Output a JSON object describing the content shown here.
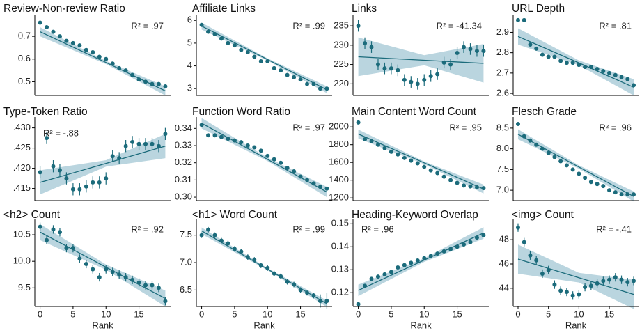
{
  "chart_data": [
    {
      "type": "scatter",
      "title": "Review-Non-review Ratio",
      "annotation": "R² = .97",
      "annotation_position": "right",
      "color": "#1b6b7b",
      "x": [
        0,
        1,
        2,
        3,
        4,
        5,
        6,
        7,
        8,
        9,
        10,
        11,
        12,
        13,
        14,
        15,
        16,
        17,
        18,
        19
      ],
      "values": [
        0.76,
        0.74,
        0.72,
        0.7,
        0.68,
        0.67,
        0.66,
        0.64,
        0.63,
        0.61,
        0.6,
        0.58,
        0.56,
        0.55,
        0.53,
        0.51,
        0.5,
        0.49,
        0.49,
        0.48
      ],
      "errors": [
        0.005,
        0.005,
        0.005,
        0.005,
        0.005,
        0.005,
        0.005,
        0.005,
        0.005,
        0.005,
        0.005,
        0.005,
        0.005,
        0.005,
        0.005,
        0.005,
        0.005,
        0.005,
        0.005,
        0.005
      ],
      "band_x": [
        0,
        10,
        19
      ],
      "fit": [
        0.72,
        0.585,
        0.46
      ],
      "ci_lower": [
        0.7,
        0.578,
        0.44
      ],
      "ci_upper": [
        0.74,
        0.592,
        0.48
      ],
      "xlim": [
        -0.8,
        19.8
      ],
      "ylim": [
        0.44,
        0.78
      ],
      "yticks": [
        0.5,
        0.6,
        0.7
      ]
    },
    {
      "type": "scatter",
      "title": "Affiliate Links",
      "annotation": "R² = .99",
      "annotation_position": "right",
      "color": "#1b6b7b",
      "x": [
        0,
        1,
        2,
        3,
        4,
        5,
        6,
        7,
        8,
        9,
        10,
        11,
        12,
        13,
        14,
        15,
        16,
        17,
        18,
        19
      ],
      "values": [
        5.8,
        5.5,
        5.4,
        5.2,
        5.0,
        4.9,
        4.7,
        4.6,
        4.4,
        4.2,
        4.2,
        3.9,
        3.8,
        3.6,
        3.5,
        3.4,
        3.2,
        3.2,
        3.0,
        3.0
      ],
      "errors": [
        0.05,
        0.05,
        0.05,
        0.05,
        0.05,
        0.05,
        0.05,
        0.05,
        0.05,
        0.05,
        0.05,
        0.05,
        0.05,
        0.05,
        0.05,
        0.05,
        0.05,
        0.05,
        0.05,
        0.05
      ],
      "band_x": [
        0,
        10,
        19
      ],
      "fit": [
        5.75,
        4.28,
        2.95
      ],
      "ci_lower": [
        5.6,
        4.23,
        2.8
      ],
      "ci_upper": [
        5.9,
        4.33,
        3.1
      ],
      "xlim": [
        -0.8,
        19.8
      ],
      "ylim": [
        2.7,
        6.1
      ],
      "yticks": [
        3,
        4,
        5,
        6
      ]
    },
    {
      "type": "scatter",
      "title": "Links",
      "annotation": "R² = -41.34",
      "annotation_position": "right",
      "color": "#1b6b7b",
      "x": [
        0,
        1,
        2,
        3,
        4,
        5,
        6,
        7,
        8,
        9,
        10,
        11,
        12,
        13,
        14,
        15,
        16,
        17,
        18,
        19
      ],
      "values": [
        235,
        230.5,
        229.5,
        225,
        224,
        224,
        223.5,
        221,
        220.5,
        220,
        221,
        222,
        222.5,
        225.5,
        225,
        228,
        229.5,
        229,
        228.5,
        228.5
      ],
      "errors": [
        1.5,
        1.5,
        1.5,
        1.5,
        1.5,
        1.5,
        1.5,
        1.5,
        1.5,
        1.5,
        1.5,
        1.5,
        1.5,
        1.5,
        1.5,
        1.5,
        1.5,
        1.5,
        1.5,
        1.5
      ],
      "band_x": [
        0,
        10,
        19
      ],
      "fit": [
        227,
        226.1,
        225.3
      ],
      "ci_lower": [
        222,
        224.8,
        220.3
      ],
      "ci_upper": [
        232,
        227.4,
        230.3
      ],
      "xlim": [
        -0.8,
        19.8
      ],
      "ylim": [
        217,
        237
      ],
      "yticks": [
        220,
        225,
        230,
        235
      ]
    },
    {
      "type": "scatter",
      "title": "URL Depth",
      "annotation": "R² = .81",
      "annotation_position": "right",
      "color": "#1b6b7b",
      "x": [
        0,
        1,
        2,
        3,
        4,
        5,
        6,
        7,
        8,
        9,
        10,
        11,
        12,
        13,
        14,
        15,
        16,
        17,
        18,
        19
      ],
      "values": [
        2.96,
        2.96,
        2.84,
        2.82,
        2.79,
        2.78,
        2.78,
        2.76,
        2.75,
        2.75,
        2.74,
        2.73,
        2.73,
        2.72,
        2.71,
        2.7,
        2.69,
        2.68,
        2.67,
        2.64
      ],
      "errors": [
        0.005,
        0.005,
        0.005,
        0.005,
        0.005,
        0.005,
        0.005,
        0.005,
        0.005,
        0.005,
        0.005,
        0.005,
        0.005,
        0.005,
        0.005,
        0.005,
        0.005,
        0.005,
        0.005,
        0.005
      ],
      "band_x": [
        0,
        10,
        19
      ],
      "fit": [
        2.88,
        2.75,
        2.63
      ],
      "ci_lower": [
        2.84,
        2.738,
        2.59
      ],
      "ci_upper": [
        2.92,
        2.762,
        2.67
      ],
      "xlim": [
        -0.8,
        19.8
      ],
      "ylim": [
        2.59,
        2.97
      ],
      "yticks": [
        2.6,
        2.7,
        2.8,
        2.9
      ]
    },
    {
      "type": "scatter",
      "title": "Type-Token Ratio",
      "annotation": "R² = -.88",
      "annotation_position": "left",
      "color": "#1b6b7b",
      "x": [
        0,
        1,
        2,
        3,
        4,
        5,
        6,
        7,
        8,
        9,
        10,
        11,
        12,
        13,
        14,
        15,
        16,
        17,
        18,
        19
      ],
      "values": [
        0.419,
        0.4275,
        0.4205,
        0.4195,
        0.4175,
        0.4148,
        0.4148,
        0.4155,
        0.4165,
        0.4165,
        0.4175,
        0.423,
        0.4225,
        0.4255,
        0.4265,
        0.426,
        0.426,
        0.426,
        0.4255,
        0.4285
      ],
      "errors": [
        0.0015,
        0.0015,
        0.0015,
        0.0015,
        0.0015,
        0.0015,
        0.0015,
        0.0015,
        0.0015,
        0.0015,
        0.0015,
        0.0015,
        0.0015,
        0.0015,
        0.0015,
        0.0015,
        0.0015,
        0.0015,
        0.0015,
        0.0015
      ],
      "band_x": [
        0,
        10,
        19
      ],
      "fit": [
        0.4165,
        0.4212,
        0.4255
      ],
      "ci_lower": [
        0.4135,
        0.4204,
        0.4225
      ],
      "ci_upper": [
        0.4195,
        0.422,
        0.4285
      ],
      "xlim": [
        -0.8,
        19.8
      ],
      "ylim": [
        0.412,
        0.432
      ],
      "yticks": [
        {
          "value": 0.415,
          "label": ".415"
        },
        {
          "value": 0.42,
          "label": ".420"
        },
        {
          "value": 0.425,
          "label": ".425"
        },
        {
          "value": 0.43,
          "label": ".430"
        }
      ]
    },
    {
      "type": "scatter",
      "title": "Function Word Ratio",
      "annotation": "R² = .97",
      "annotation_position": "right",
      "color": "#1b6b7b",
      "x": [
        0,
        1,
        2,
        3,
        4,
        5,
        6,
        7,
        8,
        9,
        10,
        11,
        12,
        13,
        14,
        15,
        16,
        17,
        18,
        19
      ],
      "values": [
        0.342,
        0.336,
        0.336,
        0.335,
        0.334,
        0.333,
        0.332,
        0.33,
        0.329,
        0.327,
        0.324,
        0.322,
        0.32,
        0.317,
        0.315,
        0.312,
        0.31,
        0.308,
        0.306,
        0.305
      ],
      "errors": [
        0.001,
        0.001,
        0.001,
        0.001,
        0.001,
        0.001,
        0.001,
        0.001,
        0.001,
        0.001,
        0.001,
        0.001,
        0.001,
        0.001,
        0.001,
        0.001,
        0.001,
        0.001,
        0.001,
        0.001
      ],
      "band_x": [
        0,
        10,
        19
      ],
      "fit": [
        0.343,
        0.322,
        0.303
      ],
      "ci_lower": [
        0.34,
        0.321,
        0.3
      ],
      "ci_upper": [
        0.346,
        0.323,
        0.306
      ],
      "xlim": [
        -0.8,
        19.8
      ],
      "ylim": [
        0.298,
        0.345
      ],
      "yticks": [
        {
          "value": 0.3,
          "label": "0.30"
        },
        0.31,
        0.32,
        0.33,
        0.34
      ]
    },
    {
      "type": "scatter",
      "title": "Main Content Word Count",
      "annotation": "R² = .95",
      "annotation_position": "right",
      "color": "#1b6b7b",
      "x": [
        0,
        1,
        2,
        3,
        4,
        5,
        6,
        7,
        8,
        9,
        10,
        11,
        12,
        13,
        14,
        15,
        16,
        17,
        18,
        19
      ],
      "values": [
        2050,
        1860,
        1840,
        1800,
        1760,
        1720,
        1690,
        1650,
        1620,
        1590,
        1550,
        1510,
        1480,
        1440,
        1400,
        1370,
        1340,
        1330,
        1320,
        1310
      ],
      "errors": [
        15,
        15,
        15,
        15,
        15,
        15,
        15,
        15,
        15,
        15,
        15,
        15,
        15,
        15,
        15,
        15,
        15,
        15,
        15,
        15
      ],
      "band_x": [
        0,
        10,
        19
      ],
      "fit": [
        1920,
        1595,
        1300
      ],
      "ci_lower": [
        1870,
        1580,
        1250
      ],
      "ci_upper": [
        1970,
        1610,
        1350
      ],
      "xlim": [
        -0.8,
        19.8
      ],
      "ylim": [
        1170,
        2080
      ],
      "yticks": [
        1200,
        1400,
        1600,
        1800,
        2000
      ]
    },
    {
      "type": "scatter",
      "title": "Flesch Grade",
      "annotation": "R² = .96",
      "annotation_position": "right",
      "color": "#1b6b7b",
      "x": [
        0,
        1,
        2,
        3,
        4,
        5,
        6,
        7,
        8,
        9,
        10,
        11,
        12,
        13,
        14,
        15,
        16,
        17,
        18,
        19
      ],
      "values": [
        8.6,
        8.3,
        8.2,
        8.1,
        8.0,
        7.9,
        7.8,
        7.7,
        7.6,
        7.5,
        7.4,
        7.3,
        7.2,
        7.15,
        7.1,
        7.0,
        6.95,
        6.9,
        6.9,
        6.9
      ],
      "errors": [
        0.04,
        0.04,
        0.04,
        0.04,
        0.04,
        0.04,
        0.04,
        0.04,
        0.04,
        0.04,
        0.04,
        0.04,
        0.04,
        0.04,
        0.04,
        0.04,
        0.04,
        0.04,
        0.04,
        0.04
      ],
      "band_x": [
        0,
        10,
        19
      ],
      "fit": [
        8.35,
        7.56,
        6.85
      ],
      "ci_lower": [
        8.23,
        7.52,
        6.73
      ],
      "ci_upper": [
        8.47,
        7.6,
        6.97
      ],
      "xlim": [
        -0.8,
        19.8
      ],
      "ylim": [
        6.75,
        8.7
      ],
      "yticks": [
        {
          "value": 7,
          "label": "7.0"
        },
        7.5,
        {
          "value": 8,
          "label": "8.0"
        },
        8.5
      ]
    },
    {
      "type": "scatter",
      "title": "<h2> Count",
      "annotation": "R² = .92",
      "annotation_position": "right",
      "color": "#1b6b7b",
      "x": [
        0,
        1,
        2,
        3,
        4,
        5,
        6,
        7,
        8,
        9,
        10,
        11,
        12,
        13,
        14,
        15,
        16,
        17,
        18,
        19
      ],
      "values": [
        10.65,
        10.4,
        10.6,
        10.55,
        10.25,
        10.25,
        10.05,
        9.95,
        9.85,
        9.7,
        9.85,
        9.8,
        9.75,
        9.7,
        9.65,
        9.6,
        9.55,
        9.55,
        9.5,
        9.25
      ],
      "errors": [
        0.08,
        0.08,
        0.08,
        0.08,
        0.08,
        0.08,
        0.08,
        0.08,
        0.08,
        0.08,
        0.08,
        0.08,
        0.08,
        0.08,
        0.08,
        0.08,
        0.08,
        0.08,
        0.08,
        0.08
      ],
      "band_x": [
        0,
        10,
        19
      ],
      "fit": [
        10.55,
        9.89,
        9.3
      ],
      "ci_lower": [
        10.4,
        9.84,
        9.15
      ],
      "ci_upper": [
        10.7,
        9.94,
        9.45
      ],
      "xlim": [
        -0.8,
        19.8
      ],
      "ylim": [
        9.15,
        10.75
      ],
      "yticks": [
        9.5,
        {
          "value": 10,
          "label": "10.0"
        },
        10.5
      ],
      "xticks": [
        0,
        5,
        10,
        15
      ],
      "xlabel": "Rank"
    },
    {
      "type": "scatter",
      "title": "<h1> Word Count",
      "annotation": "R² = .99",
      "annotation_position": "right",
      "color": "#1b6b7b",
      "x": [
        0,
        1,
        2,
        3,
        4,
        5,
        6,
        7,
        8,
        9,
        10,
        11,
        12,
        13,
        14,
        15,
        16,
        17,
        18,
        19
      ],
      "values": [
        7.5,
        7.6,
        7.5,
        7.4,
        7.35,
        7.25,
        7.2,
        7.1,
        7.05,
        6.95,
        6.9,
        6.8,
        6.75,
        6.65,
        6.6,
        6.5,
        6.45,
        6.4,
        6.3,
        6.3
      ],
      "errors": [
        0.05,
        0.05,
        0.05,
        0.05,
        0.05,
        0.05,
        0.05,
        0.05,
        0.05,
        0.05,
        0.05,
        0.05,
        0.05,
        0.05,
        0.05,
        0.05,
        0.05,
        0.05,
        0.12,
        0.15
      ],
      "band_x": [
        0,
        10,
        19
      ],
      "fit": [
        7.58,
        6.88,
        6.25
      ],
      "ci_lower": [
        7.52,
        6.86,
        6.19
      ],
      "ci_upper": [
        7.64,
        6.9,
        6.31
      ],
      "xlim": [
        -0.8,
        19.8
      ],
      "ylim": [
        6.2,
        7.75
      ],
      "yticks": [
        6.5,
        {
          "value": 7,
          "label": "7.0"
        },
        7.5
      ],
      "xticks": [
        0,
        5,
        10,
        15
      ],
      "xlabel": "Rank"
    },
    {
      "type": "scatter",
      "title": "Heading-Keyword Overlap",
      "annotation": "R² = .96",
      "annotation_position": "left",
      "color": "#1b6b7b",
      "x": [
        0,
        1,
        2,
        3,
        4,
        5,
        6,
        7,
        8,
        9,
        10,
        11,
        12,
        13,
        14,
        15,
        16,
        17,
        18,
        19
      ],
      "values": [
        0.115,
        0.123,
        0.126,
        0.127,
        0.128,
        0.129,
        0.131,
        0.132,
        0.133,
        0.134,
        0.135,
        0.136,
        0.137,
        0.138,
        0.139,
        0.14,
        0.141,
        0.142,
        0.144,
        0.145
      ],
      "errors": [
        0.0008,
        0.0008,
        0.0008,
        0.0008,
        0.0008,
        0.0008,
        0.0008,
        0.0008,
        0.0008,
        0.0008,
        0.0008,
        0.0008,
        0.0008,
        0.0008,
        0.0008,
        0.0008,
        0.0008,
        0.0008,
        0.0008,
        0.0008
      ],
      "band_x": [
        0,
        10,
        19
      ],
      "fit": [
        0.121,
        0.1342,
        0.146
      ],
      "ci_lower": [
        0.1185,
        0.1334,
        0.1435
      ],
      "ci_upper": [
        0.1235,
        0.135,
        0.1485
      ],
      "xlim": [
        -0.8,
        19.8
      ],
      "ylim": [
        0.114,
        0.151
      ],
      "yticks": [
        0.12,
        0.13,
        0.14,
        0.15
      ],
      "xticks": [
        0,
        5,
        10,
        15
      ],
      "xlabel": "Rank"
    },
    {
      "type": "scatter",
      "title": "<img> Count",
      "annotation": "R² = -.41",
      "annotation_position": "right",
      "color": "#1b6b7b",
      "x": [
        0,
        1,
        2,
        3,
        4,
        5,
        6,
        7,
        8,
        9,
        10,
        11,
        12,
        13,
        14,
        15,
        16,
        17,
        18,
        19
      ],
      "values": [
        49,
        47.8,
        46.7,
        46.3,
        45.2,
        45.5,
        44.3,
        43.8,
        43.7,
        43.4,
        43.5,
        44.1,
        44.2,
        44.4,
        44.6,
        44.7,
        44.9,
        44.7,
        44.5,
        44.6
      ],
      "errors": [
        0.35,
        0.35,
        0.35,
        0.35,
        0.35,
        0.35,
        0.35,
        0.35,
        0.35,
        0.35,
        0.35,
        0.35,
        0.35,
        0.35,
        0.35,
        0.35,
        0.35,
        0.35,
        0.35,
        0.35
      ],
      "band_x": [
        0,
        10,
        19
      ],
      "fit": [
        46.4,
        44.87,
        43.5
      ],
      "ci_lower": [
        45.2,
        44.47,
        42.3
      ],
      "ci_upper": [
        47.6,
        45.27,
        44.7
      ],
      "xlim": [
        -0.8,
        19.8
      ],
      "ylim": [
        42.5,
        49.5
      ],
      "yticks": [
        44,
        46,
        48
      ],
      "xticks": [
        0,
        5,
        10,
        15
      ],
      "xlabel": "Rank"
    }
  ]
}
